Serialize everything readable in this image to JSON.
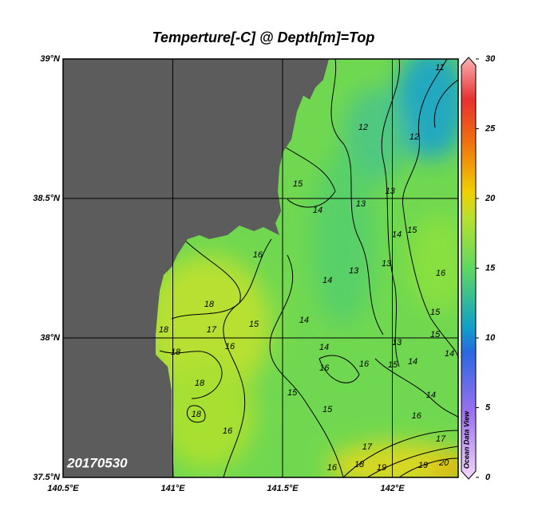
{
  "map": {
    "title": "Temperture[-C] @ Depth[m]=Top",
    "xlim": [
      140.5,
      142.3
    ],
    "ylim": [
      37.5,
      39
    ],
    "grid": true,
    "xticks": [
      {
        "value": 140.5,
        "label": "140.5°E"
      },
      {
        "value": 141,
        "label": "141°E"
      },
      {
        "value": 141.5,
        "label": "141.5°E"
      },
      {
        "value": 142,
        "label": "142°E"
      }
    ],
    "yticks": [
      {
        "value": 37.5,
        "label": "37.5°N"
      },
      {
        "value": 38,
        "label": "38°N"
      },
      {
        "value": 38.5,
        "label": "38.5°N"
      },
      {
        "value": 39,
        "label": "39°N"
      }
    ],
    "colorbar": {
      "lim": [
        0,
        30
      ],
      "ticks": [
        0,
        5,
        10,
        15,
        20,
        25,
        30
      ],
      "label": "Ocean Data View"
    },
    "date_label": "20170530",
    "contour_labels": [
      {
        "value": 11,
        "lon": 142.216,
        "lat": 38.969
      },
      {
        "value": 12,
        "lon": 141.867,
        "lat": 38.754
      },
      {
        "value": 12,
        "lon": 142.1,
        "lat": 38.72
      },
      {
        "value": 13,
        "lon": 141.99,
        "lat": 38.526
      },
      {
        "value": 15,
        "lon": 141.569,
        "lat": 38.551
      },
      {
        "value": 14,
        "lon": 141.66,
        "lat": 38.457
      },
      {
        "value": 13,
        "lon": 141.856,
        "lat": 38.48
      },
      {
        "value": 16,
        "lon": 141.387,
        "lat": 38.297
      },
      {
        "value": 15,
        "lon": 142.09,
        "lat": 38.386
      },
      {
        "value": 14,
        "lon": 142.02,
        "lat": 38.37
      },
      {
        "value": 13,
        "lon": 141.973,
        "lat": 38.266
      },
      {
        "value": 13,
        "lon": 141.824,
        "lat": 38.24
      },
      {
        "value": 14,
        "lon": 141.704,
        "lat": 38.206
      },
      {
        "value": 16,
        "lon": 142.22,
        "lat": 38.231
      },
      {
        "value": 18,
        "lon": 141.165,
        "lat": 38.12
      },
      {
        "value": 15,
        "lon": 141.369,
        "lat": 38.049
      },
      {
        "value": 14,
        "lon": 141.598,
        "lat": 38.063
      },
      {
        "value": 18,
        "lon": 140.958,
        "lat": 38.029
      },
      {
        "value": 17,
        "lon": 141.176,
        "lat": 38.029
      },
      {
        "value": 16,
        "lon": 141.26,
        "lat": 37.969
      },
      {
        "value": 18,
        "lon": 141.013,
        "lat": 37.949
      },
      {
        "value": 15,
        "lon": 142.195,
        "lat": 38.091
      },
      {
        "value": 15,
        "lon": 142.195,
        "lat": 38.011
      },
      {
        "value": 14,
        "lon": 142.26,
        "lat": 37.943
      },
      {
        "value": 13,
        "lon": 142.02,
        "lat": 37.983
      },
      {
        "value": 14,
        "lon": 141.689,
        "lat": 37.966
      },
      {
        "value": 16,
        "lon": 141.871,
        "lat": 37.906
      },
      {
        "value": 16,
        "lon": 141.69,
        "lat": 37.891
      },
      {
        "value": 15,
        "lon": 142.002,
        "lat": 37.903
      },
      {
        "value": 14,
        "lon": 142.093,
        "lat": 37.914
      },
      {
        "value": 18,
        "lon": 141.122,
        "lat": 37.837
      },
      {
        "value": 15,
        "lon": 141.544,
        "lat": 37.803
      },
      {
        "value": 14,
        "lon": 142.176,
        "lat": 37.794
      },
      {
        "value": 15,
        "lon": 141.704,
        "lat": 37.743
      },
      {
        "value": 16,
        "lon": 142.11,
        "lat": 37.72
      },
      {
        "value": 18,
        "lon": 141.107,
        "lat": 37.726
      },
      {
        "value": 16,
        "lon": 141.249,
        "lat": 37.666
      },
      {
        "value": 17,
        "lon": 141.885,
        "lat": 37.609
      },
      {
        "value": 17,
        "lon": 142.22,
        "lat": 37.637
      },
      {
        "value": 16,
        "lon": 141.725,
        "lat": 37.534
      },
      {
        "value": 18,
        "lon": 141.849,
        "lat": 37.546
      },
      {
        "value": 19,
        "lon": 141.951,
        "lat": 37.534
      },
      {
        "value": 19,
        "lon": 142.14,
        "lat": 37.543
      },
      {
        "value": 20,
        "lon": 142.235,
        "lat": 37.551
      }
    ]
  }
}
